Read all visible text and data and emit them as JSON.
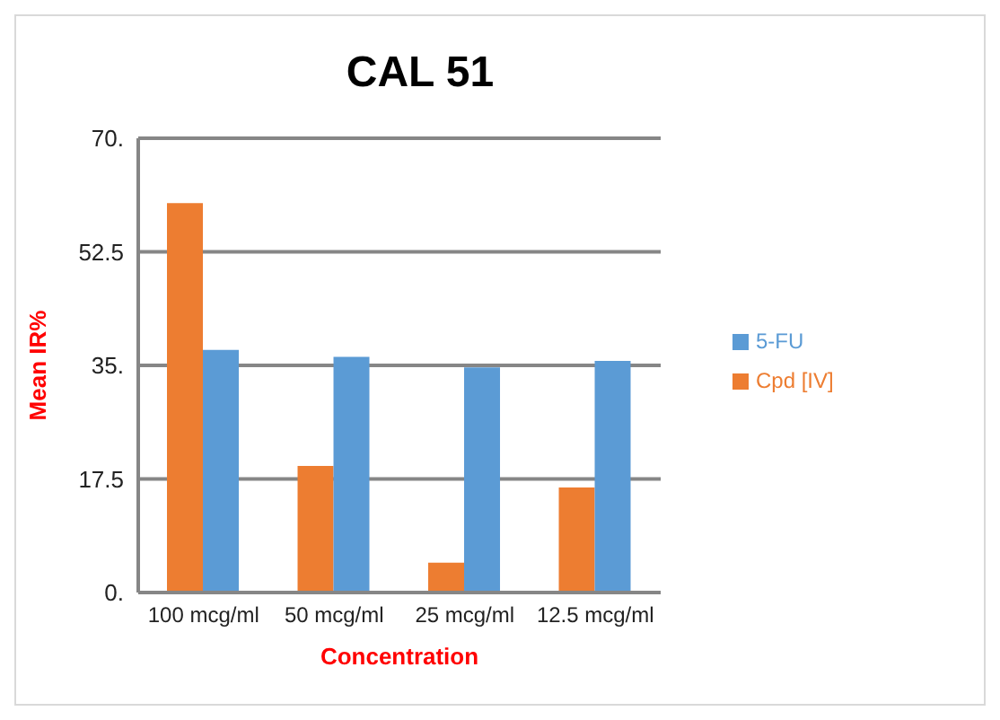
{
  "chart_data": {
    "type": "bar",
    "title": "CAL 51",
    "xlabel": "Concentration",
    "ylabel": "Mean IR%",
    "categories": [
      "100 mcg/ml",
      "50  mcg/ml",
      "25 mcg/ml",
      "12.5 mcg/ml"
    ],
    "series": [
      {
        "name": "Cpd [IV]",
        "color": "#ed7d31",
        "values": [
          60,
          19.5,
          4.6,
          16.2
        ]
      },
      {
        "name": "5-FU",
        "color": "#5b9bd5",
        "values": [
          37.4,
          36.3,
          34.7,
          35.7
        ]
      }
    ],
    "ylim": [
      0,
      70
    ],
    "yticks": [
      {
        "value": 0,
        "label": "0."
      },
      {
        "value": 17.5,
        "label": "17.5"
      },
      {
        "value": 35,
        "label": "35."
      },
      {
        "value": 52.5,
        "label": "52.5"
      },
      {
        "value": 70,
        "label": "70."
      }
    ],
    "grid": "y",
    "legend": "right"
  }
}
